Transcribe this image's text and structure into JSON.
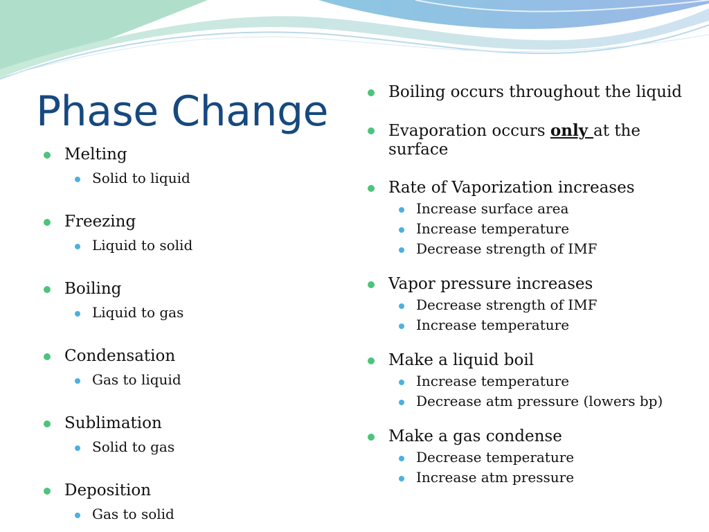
{
  "slide": {
    "title": "Phase Change",
    "left_items": [
      {
        "label": "Melting",
        "sub": "Solid to liquid"
      },
      {
        "label": "Freezing",
        "sub": "Liquid to solid"
      },
      {
        "label": "Boiling",
        "sub": "Liquid to gas"
      },
      {
        "label": "Condensation",
        "sub": "Gas to liquid"
      },
      {
        "label": "Sublimation",
        "sub": "Solid to gas"
      },
      {
        "label": "Deposition",
        "sub": "Gas to solid"
      }
    ],
    "right_items": {
      "boiling": "Boiling occurs throughout the liquid",
      "evaporation": {
        "before": "Evaporation occurs ",
        "emphasis": "only ",
        "after": "at the surface"
      },
      "rate": {
        "label": "Rate of Vaporization increases",
        "subs": [
          "Increase surface area",
          "Increase temperature",
          "Decrease strength of IMF"
        ]
      },
      "vapor": {
        "label": "Vapor pressure increases",
        "subs": [
          "Decrease strength of IMF",
          "Increase temperature"
        ]
      },
      "boil": {
        "label": "Make a liquid boil",
        "subs": [
          "Increase temperature",
          "Decrease atm pressure (lowers bp)"
        ]
      },
      "condense": {
        "label": "Make a gas condense",
        "subs": [
          "Decrease temperature",
          "Increase atm pressure"
        ]
      }
    }
  },
  "colors": {
    "title": "#17497f",
    "bullet_level1": "#4cc47a",
    "bullet_level2": "#4bb1de",
    "text": "#111111"
  }
}
